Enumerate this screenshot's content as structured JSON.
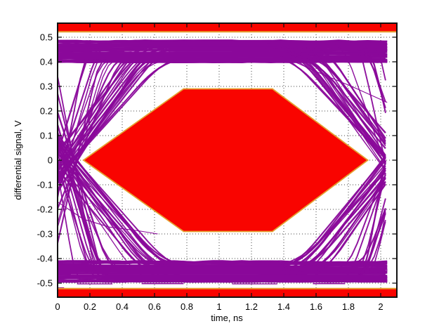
{
  "figure": {
    "title": "",
    "xlabel": "time, ns",
    "ylabel": "differential signal, V"
  },
  "chart_data": {
    "type": "line",
    "subtype": "eye-diagram-with-compliance-mask",
    "title": "",
    "xlabel": "time, ns",
    "ylabel": "differential signal, V",
    "xlim": [
      0,
      2.1
    ],
    "ylim": [
      -0.557,
      0.557
    ],
    "xtick_vals": [
      0,
      0.2,
      0.4,
      0.6,
      0.8,
      1,
      1.2,
      1.4,
      1.6,
      1.8,
      2
    ],
    "xtick_labels": [
      "0",
      "0.2",
      "0.4",
      "0.6",
      "0.8",
      "1",
      "1.2",
      "1.4",
      "1.6",
      "1.8",
      "2"
    ],
    "ytick_vals": [
      -0.5,
      -0.4,
      -0.3,
      -0.2,
      -0.1,
      0,
      0.1,
      0.2,
      0.3,
      0.4,
      0.5
    ],
    "ytick_labels": [
      "-0.5",
      "-0.4",
      "-0.3",
      "-0.2",
      "-0.1",
      "0",
      "0.1",
      "0.2",
      "0.3",
      "0.4",
      "0.5"
    ],
    "grid": "dotted",
    "legend": "none",
    "colors": {
      "trace": "#8A089A",
      "trace_light_streak": "#BD5BC4",
      "mask_fill": "#F90400",
      "mask_edge": "#E5A030",
      "axis": "#111111",
      "grid": "#444444",
      "background": "#ffffff"
    },
    "mask": {
      "center_polygon": [
        [
          0.16,
          0
        ],
        [
          0.78,
          0.29
        ],
        [
          1.33,
          0.29
        ],
        [
          1.92,
          0
        ],
        [
          1.33,
          -0.29
        ],
        [
          0.78,
          -0.29
        ]
      ],
      "top_bar_v": [
        0.522,
        0.557
      ],
      "bottom_bar_v": [
        -0.557,
        -0.522
      ]
    },
    "eye": {
      "t_range": [
        0,
        2.045
      ],
      "rail_top_v": [
        0.398,
        0.487
      ],
      "rail_bottom_v": [
        -0.495,
        -0.41
      ],
      "crossing_left_t": 0.03,
      "crossing_right_t": 2.06,
      "crossing_jitter": 0.14,
      "slow_rise_T": [
        0.44,
        0.62
      ],
      "fast_rise_T": [
        0.1,
        0.3
      ],
      "fast_fraction": 0.3,
      "n_rail_lines": 46,
      "n_transitions_per_edge": 30,
      "stray_curves": [
        {
          "points": [
            [
              1.45,
              0.405
            ],
            [
              1.62,
              0.355
            ],
            [
              1.82,
              0.3
            ],
            [
              2.04,
              0.235
            ]
          ]
        },
        {
          "points": [
            [
              0,
              -0.17
            ],
            [
              0.16,
              -0.24
            ],
            [
              0.32,
              -0.272
            ],
            [
              0.5,
              -0.287
            ],
            [
              0.62,
              -0.3
            ]
          ]
        }
      ],
      "stray_horizontals": [
        {
          "t": [
            1.4,
            2.04
          ],
          "v": 0.408
        },
        {
          "t": [
            1.52,
            2.04
          ],
          "v": 0.418
        },
        {
          "t": [
            0.12,
            0.34
          ],
          "v": -0.503
        },
        {
          "t": [
            0.52,
            0.78
          ],
          "v": -0.502
        },
        {
          "t": [
            1.08,
            1.36
          ],
          "v": -0.503
        },
        {
          "t": [
            1.58,
            1.78
          ],
          "v": -0.502
        }
      ],
      "artifacts": [
        {
          "t": [
            0.0,
            0.04
          ],
          "v": [
            -0.517,
            -0.547
          ]
        }
      ]
    },
    "seed": 1337
  }
}
